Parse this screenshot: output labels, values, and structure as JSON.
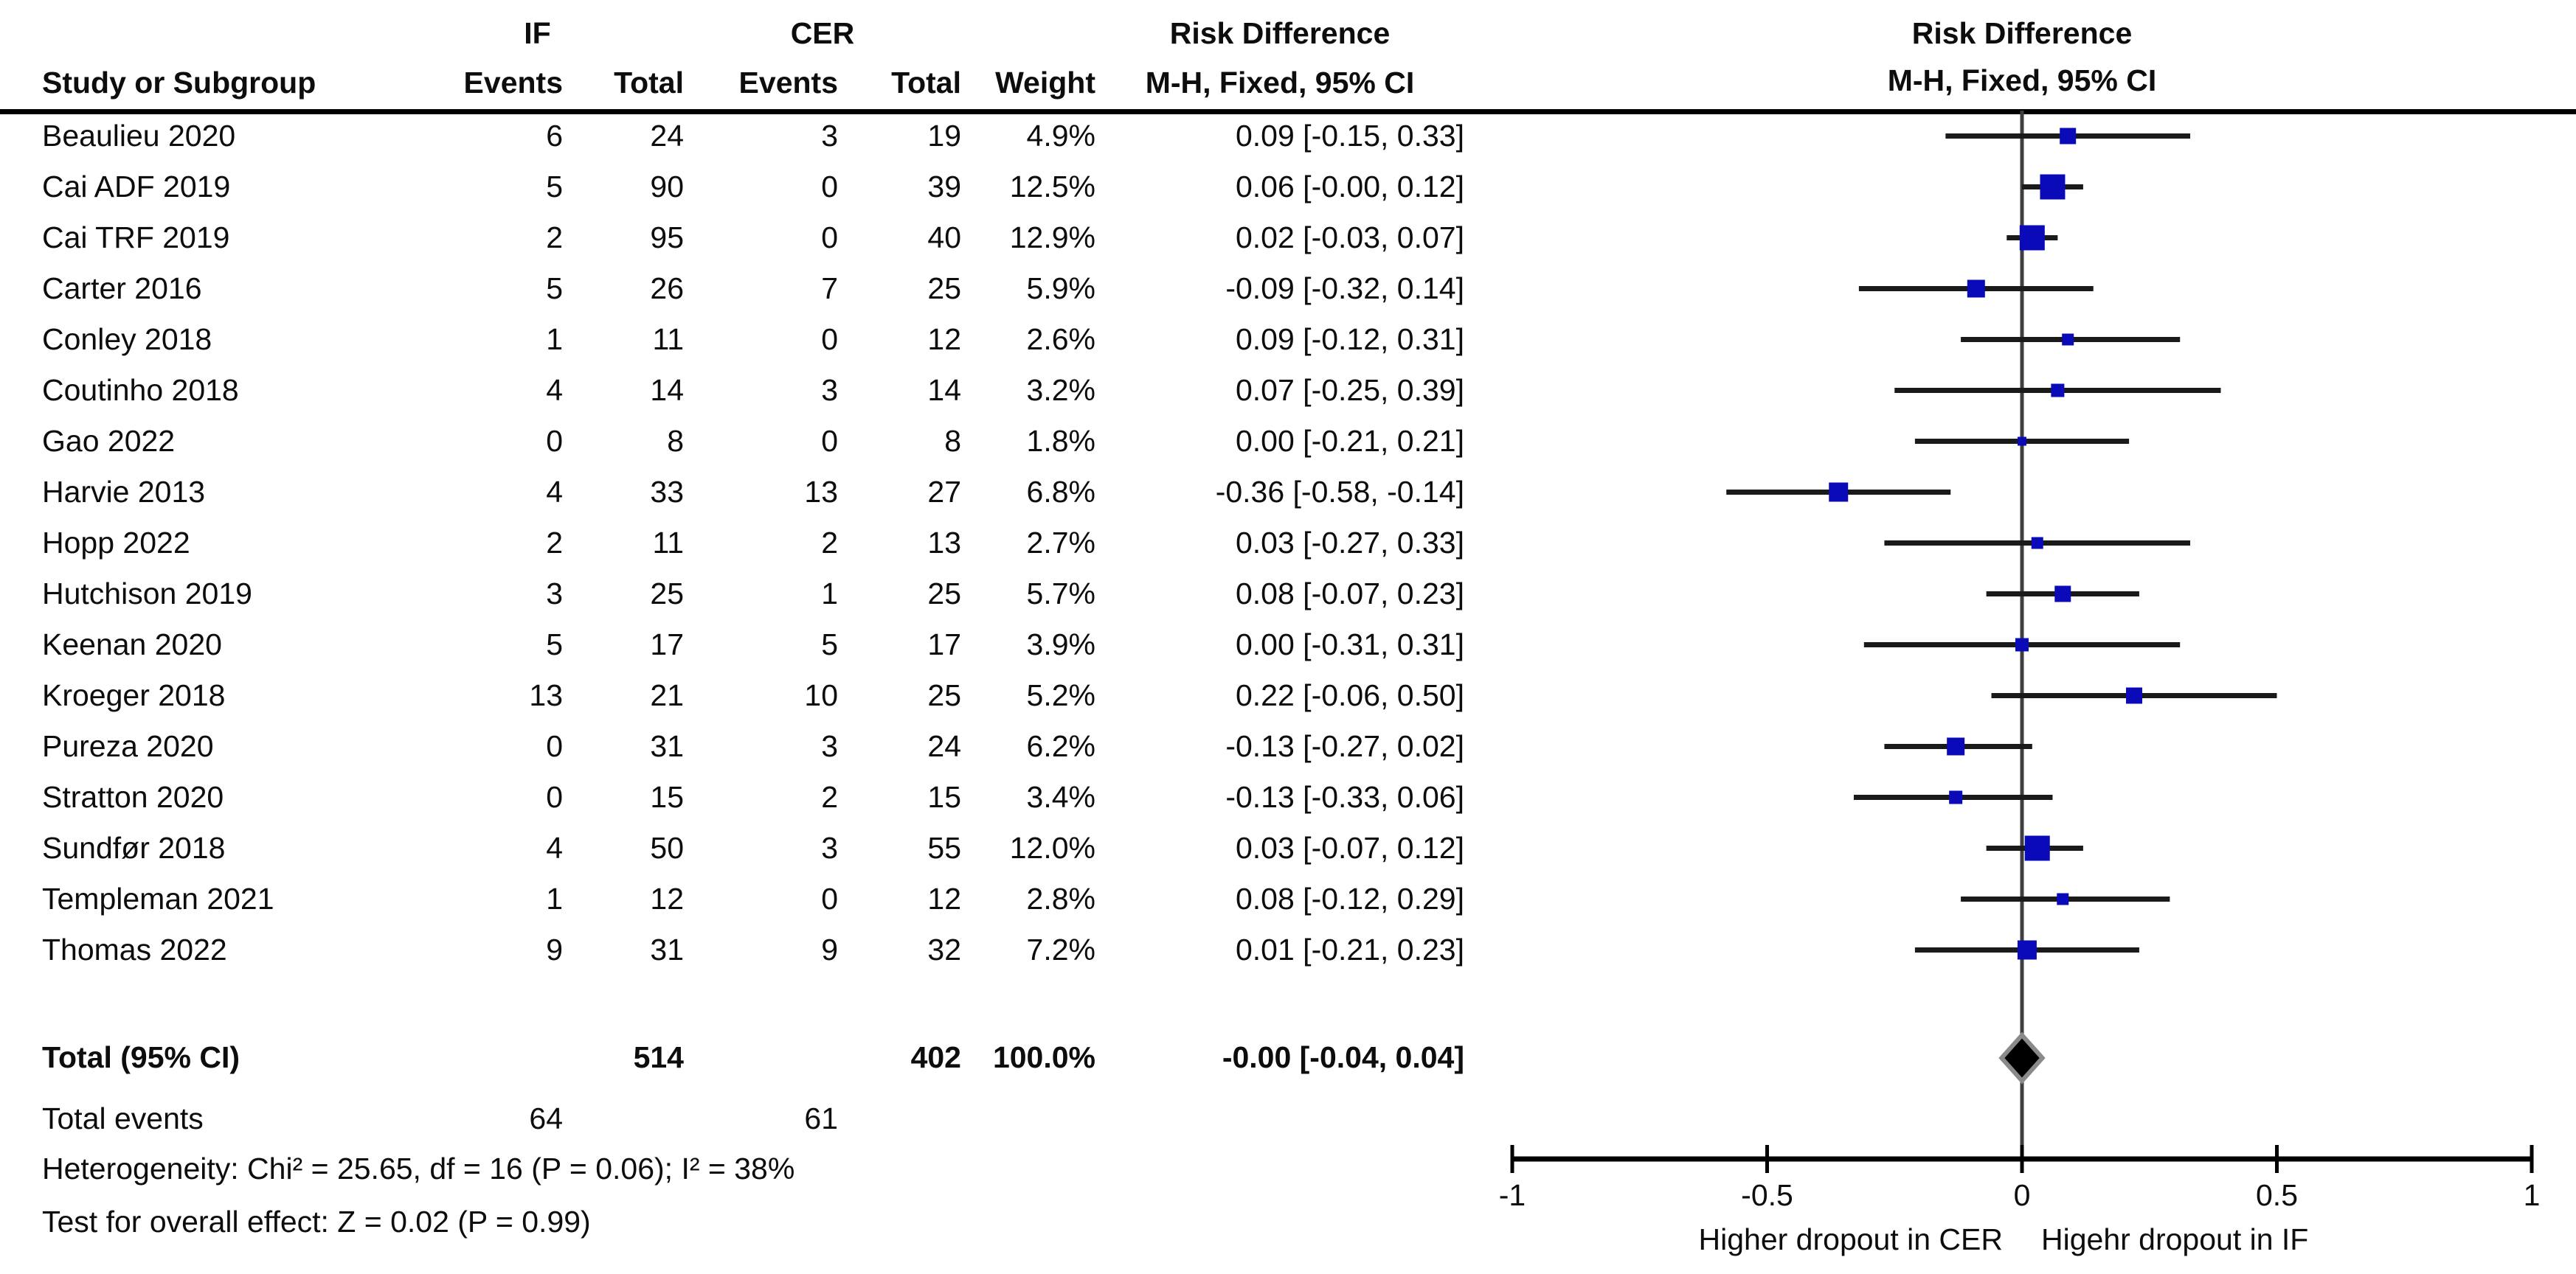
{
  "header": {
    "group_if": "IF",
    "group_cer": "CER",
    "col_study": "Study or Subgroup",
    "col_events": "Events",
    "col_total": "Total",
    "col_weight": "Weight",
    "rd_title": "Risk Difference",
    "rd_subtitle": "M-H, Fixed, 95% CI",
    "plot_title": "Risk Difference",
    "plot_subtitle": "M-H, Fixed, 95% CI"
  },
  "chart_data": {
    "type": "forest",
    "effect_measure": "Risk Difference (M-H, Fixed, 95% CI)",
    "studies": [
      {
        "name": "Beaulieu 2020",
        "if_events": "6",
        "if_total": "24",
        "cer_events": "3",
        "cer_total": "19",
        "weight": "4.9%",
        "weight_pct": 4.9,
        "rd_label": "0.09 [-0.15, 0.33]",
        "rd": 0.09,
        "ci_low": -0.15,
        "ci_high": 0.33
      },
      {
        "name": "Cai ADF 2019",
        "if_events": "5",
        "if_total": "90",
        "cer_events": "0",
        "cer_total": "39",
        "weight": "12.5%",
        "weight_pct": 12.5,
        "rd_label": "0.06 [-0.00, 0.12]",
        "rd": 0.06,
        "ci_low": -0.0,
        "ci_high": 0.12
      },
      {
        "name": "Cai TRF 2019",
        "if_events": "2",
        "if_total": "95",
        "cer_events": "0",
        "cer_total": "40",
        "weight": "12.9%",
        "weight_pct": 12.9,
        "rd_label": "0.02 [-0.03, 0.07]",
        "rd": 0.02,
        "ci_low": -0.03,
        "ci_high": 0.07
      },
      {
        "name": "Carter 2016",
        "if_events": "5",
        "if_total": "26",
        "cer_events": "7",
        "cer_total": "25",
        "weight": "5.9%",
        "weight_pct": 5.9,
        "rd_label": "-0.09 [-0.32, 0.14]",
        "rd": -0.09,
        "ci_low": -0.32,
        "ci_high": 0.14
      },
      {
        "name": "Conley 2018",
        "if_events": "1",
        "if_total": "11",
        "cer_events": "0",
        "cer_total": "12",
        "weight": "2.6%",
        "weight_pct": 2.6,
        "rd_label": "0.09 [-0.12, 0.31]",
        "rd": 0.09,
        "ci_low": -0.12,
        "ci_high": 0.31
      },
      {
        "name": "Coutinho 2018",
        "if_events": "4",
        "if_total": "14",
        "cer_events": "3",
        "cer_total": "14",
        "weight": "3.2%",
        "weight_pct": 3.2,
        "rd_label": "0.07 [-0.25, 0.39]",
        "rd": 0.07,
        "ci_low": -0.25,
        "ci_high": 0.39
      },
      {
        "name": "Gao 2022",
        "if_events": "0",
        "if_total": "8",
        "cer_events": "0",
        "cer_total": "8",
        "weight": "1.8%",
        "weight_pct": 1.8,
        "rd_label": "0.00 [-0.21, 0.21]",
        "rd": 0.0,
        "ci_low": -0.21,
        "ci_high": 0.21
      },
      {
        "name": "Harvie 2013",
        "if_events": "4",
        "if_total": "33",
        "cer_events": "13",
        "cer_total": "27",
        "weight": "6.8%",
        "weight_pct": 6.8,
        "rd_label": "-0.36 [-0.58, -0.14]",
        "rd": -0.36,
        "ci_low": -0.58,
        "ci_high": -0.14
      },
      {
        "name": "Hopp 2022",
        "if_events": "2",
        "if_total": "11",
        "cer_events": "2",
        "cer_total": "13",
        "weight": "2.7%",
        "weight_pct": 2.7,
        "rd_label": "0.03 [-0.27, 0.33]",
        "rd": 0.03,
        "ci_low": -0.27,
        "ci_high": 0.33
      },
      {
        "name": "Hutchison 2019",
        "if_events": "3",
        "if_total": "25",
        "cer_events": "1",
        "cer_total": "25",
        "weight": "5.7%",
        "weight_pct": 5.7,
        "rd_label": "0.08 [-0.07, 0.23]",
        "rd": 0.08,
        "ci_low": -0.07,
        "ci_high": 0.23
      },
      {
        "name": "Keenan 2020",
        "if_events": "5",
        "if_total": "17",
        "cer_events": "5",
        "cer_total": "17",
        "weight": "3.9%",
        "weight_pct": 3.9,
        "rd_label": "0.00 [-0.31, 0.31]",
        "rd": 0.0,
        "ci_low": -0.31,
        "ci_high": 0.31
      },
      {
        "name": "Kroeger 2018",
        "if_events": "13",
        "if_total": "21",
        "cer_events": "10",
        "cer_total": "25",
        "weight": "5.2%",
        "weight_pct": 5.2,
        "rd_label": "0.22 [-0.06, 0.50]",
        "rd": 0.22,
        "ci_low": -0.06,
        "ci_high": 0.5
      },
      {
        "name": "Pureza 2020",
        "if_events": "0",
        "if_total": "31",
        "cer_events": "3",
        "cer_total": "24",
        "weight": "6.2%",
        "weight_pct": 6.2,
        "rd_label": "-0.13 [-0.27, 0.02]",
        "rd": -0.13,
        "ci_low": -0.27,
        "ci_high": 0.02
      },
      {
        "name": "Stratton 2020",
        "if_events": "0",
        "if_total": "15",
        "cer_events": "2",
        "cer_total": "15",
        "weight": "3.4%",
        "weight_pct": 3.4,
        "rd_label": "-0.13 [-0.33, 0.06]",
        "rd": -0.13,
        "ci_low": -0.33,
        "ci_high": 0.06
      },
      {
        "name": "Sundfør 2018",
        "if_events": "4",
        "if_total": "50",
        "cer_events": "3",
        "cer_total": "55",
        "weight": "12.0%",
        "weight_pct": 12.0,
        "rd_label": "0.03 [-0.07, 0.12]",
        "rd": 0.03,
        "ci_low": -0.07,
        "ci_high": 0.12
      },
      {
        "name": "Templeman 2021",
        "if_events": "1",
        "if_total": "12",
        "cer_events": "0",
        "cer_total": "12",
        "weight": "2.8%",
        "weight_pct": 2.8,
        "rd_label": "0.08 [-0.12, 0.29]",
        "rd": 0.08,
        "ci_low": -0.12,
        "ci_high": 0.29
      },
      {
        "name": "Thomas 2022",
        "if_events": "9",
        "if_total": "31",
        "cer_events": "9",
        "cer_total": "32",
        "weight": "7.2%",
        "weight_pct": 7.2,
        "rd_label": "0.01 [-0.21, 0.23]",
        "rd": 0.01,
        "ci_low": -0.21,
        "ci_high": 0.23
      }
    ],
    "total": {
      "label": "Total (95% CI)",
      "if_total": "514",
      "cer_total": "402",
      "weight": "100.0%",
      "rd_label": "-0.00 [-0.04, 0.04]",
      "rd": -0.0,
      "ci_low": -0.04,
      "ci_high": 0.04
    },
    "total_events": {
      "label": "Total events",
      "if_events": "64",
      "cer_events": "61"
    },
    "heterogeneity_label": "Heterogeneity: Chi² = 25.65, df = 16 (P = 0.06); I² = 38%",
    "overall_effect_label": "Test for overall effect: Z = 0.02 (P = 0.99)",
    "x_axis": {
      "min": -1,
      "max": 1,
      "ticks": [
        -1,
        -0.5,
        0,
        0.5,
        1
      ],
      "tick_labels": [
        "-1",
        "-0.5",
        "0",
        "0.5",
        "1"
      ]
    },
    "footer_left": "Higher dropout in CER",
    "footer_right": "Higehr dropout in IF"
  },
  "colors": {
    "marker_blue": "#0b0ab8",
    "ci_line": "#1a1a1a",
    "zero_line": "#3f3f3f",
    "axis": "#000000",
    "diamond_fill": "#000000",
    "diamond_stroke": "#8a8a8a",
    "text": "#0d0d0d"
  }
}
